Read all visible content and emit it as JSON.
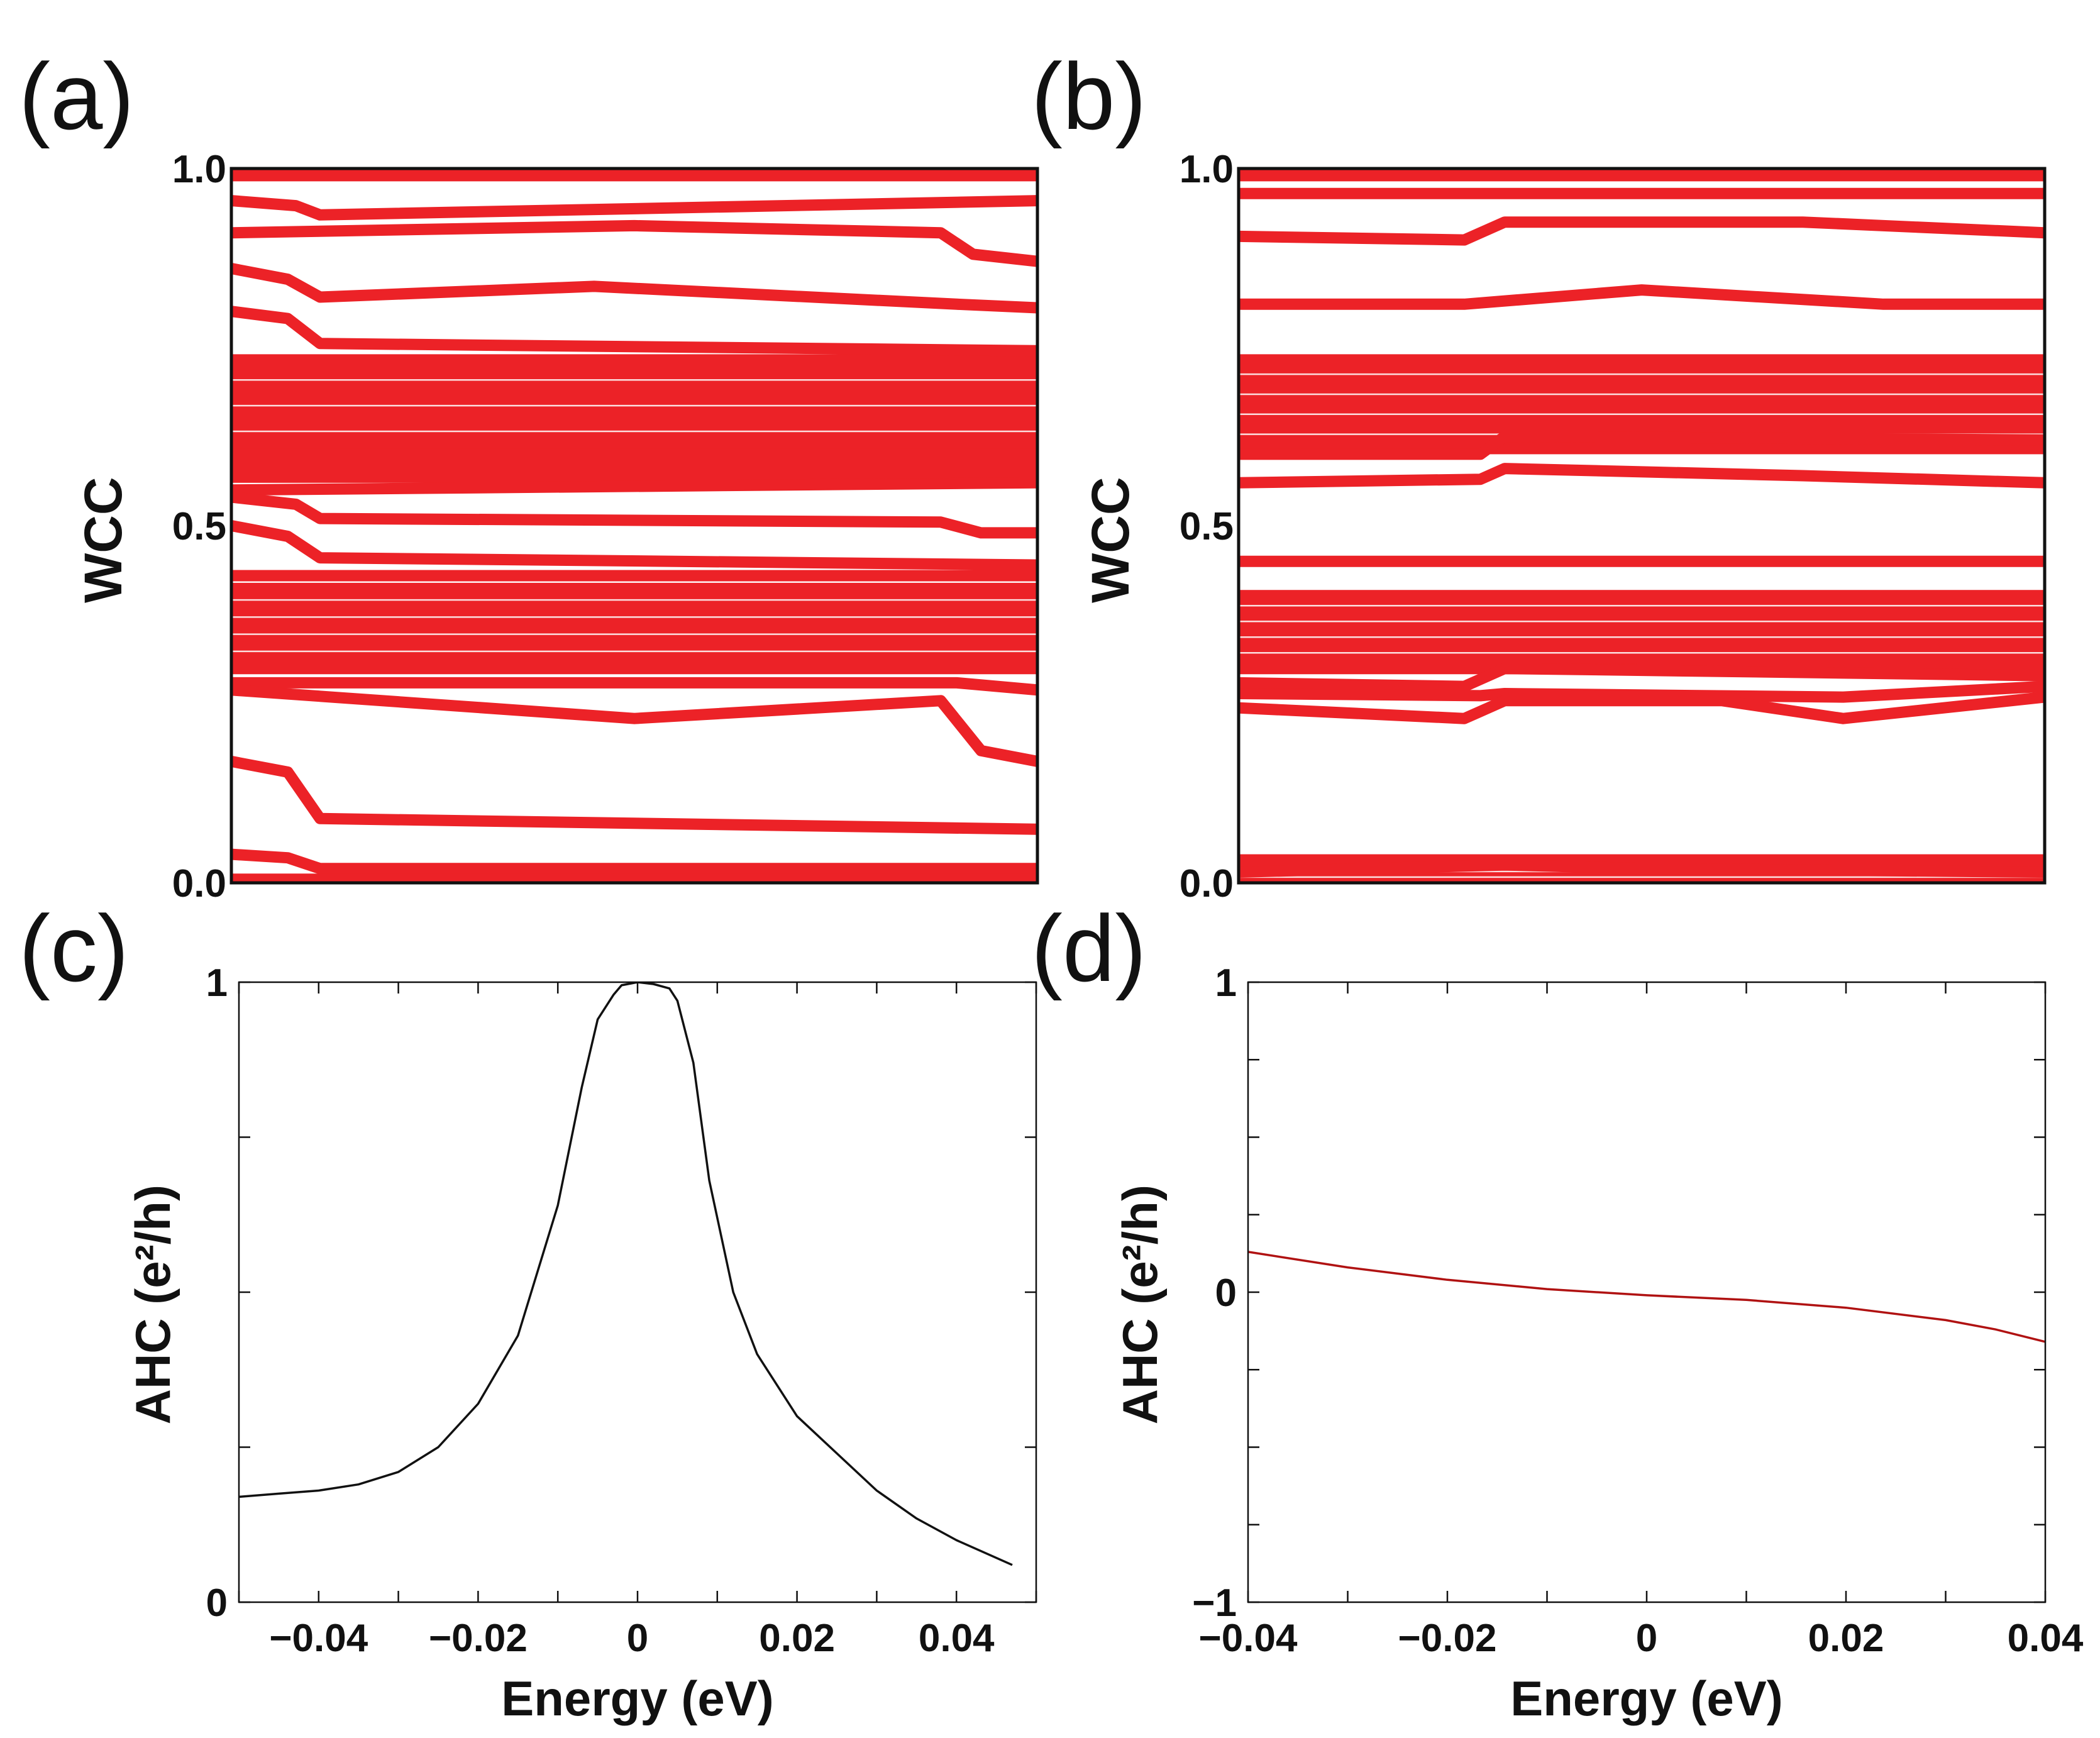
{
  "panels": {
    "a": {
      "letter": "(a)"
    },
    "b": {
      "letter": "(b)"
    },
    "c": {
      "letter": "(c)"
    },
    "d": {
      "letter": "(d)"
    }
  },
  "colors": {
    "wcc": "#ec2227",
    "ahc_c": "#111111",
    "ahc_d": "#b01212",
    "axis": "#111111"
  },
  "chart_data": [
    {
      "id": "a",
      "type": "line",
      "title": "",
      "xlabel": "",
      "ylabel": "WCC",
      "xlim": [
        0,
        1
      ],
      "ylim": [
        0,
        1
      ],
      "yticks": [
        0,
        0.5,
        1
      ],
      "ytick_labels": [
        "0.0",
        "0.5",
        "1.0"
      ],
      "dense_bands": [
        [
          0.56,
          0.74
        ],
        [
          0.3,
          0.42
        ]
      ],
      "series": [
        {
          "name": "w1",
          "x": [
            0,
            1
          ],
          "y": [
            0.99,
            0.99
          ]
        },
        {
          "name": "w2",
          "x": [
            0,
            0.08,
            0.11,
            1
          ],
          "y": [
            0.955,
            0.948,
            0.935,
            0.955
          ]
        },
        {
          "name": "w3",
          "x": [
            0,
            0.5,
            0.88,
            0.92,
            1
          ],
          "y": [
            0.91,
            0.92,
            0.91,
            0.88,
            0.87
          ]
        },
        {
          "name": "w4",
          "x": [
            0,
            0.07,
            0.11,
            0.45,
            0.9,
            1
          ],
          "y": [
            0.86,
            0.845,
            0.82,
            0.835,
            0.81,
            0.805
          ]
        },
        {
          "name": "w5",
          "x": [
            0,
            0.07,
            0.11,
            1
          ],
          "y": [
            0.8,
            0.79,
            0.755,
            0.745
          ]
        },
        {
          "name": "w6",
          "x": [
            0,
            1
          ],
          "y": [
            0.6,
            0.6
          ]
        },
        {
          "name": "w7",
          "x": [
            0,
            1
          ],
          "y": [
            0.55,
            0.56
          ]
        },
        {
          "name": "w8",
          "x": [
            0,
            0.08,
            0.11,
            0.88,
            0.93,
            1
          ],
          "y": [
            0.54,
            0.53,
            0.51,
            0.505,
            0.49,
            0.49
          ]
        },
        {
          "name": "w9",
          "x": [
            0,
            0.07,
            0.11,
            1
          ],
          "y": [
            0.5,
            0.485,
            0.455,
            0.445
          ]
        },
        {
          "name": "w10",
          "x": [
            0,
            1
          ],
          "y": [
            0.43,
            0.43
          ]
        },
        {
          "name": "w11",
          "x": [
            0,
            0.5,
            1
          ],
          "y": [
            0.3,
            0.3,
            0.3
          ]
        },
        {
          "name": "w12",
          "x": [
            0,
            0.9,
            1
          ],
          "y": [
            0.28,
            0.28,
            0.27
          ]
        },
        {
          "name": "w13",
          "x": [
            0,
            0.5,
            0.88,
            0.93,
            1
          ],
          "y": [
            0.27,
            0.23,
            0.255,
            0.185,
            0.17
          ]
        },
        {
          "name": "w14",
          "x": [
            0,
            0.07,
            0.11,
            1
          ],
          "y": [
            0.17,
            0.155,
            0.09,
            0.075
          ]
        },
        {
          "name": "w15",
          "x": [
            0,
            0.07,
            0.11,
            1
          ],
          "y": [
            0.04,
            0.035,
            0.02,
            0.02
          ]
        },
        {
          "name": "w16",
          "x": [
            0,
            1
          ],
          "y": [
            0.005,
            0.005
          ]
        }
      ]
    },
    {
      "id": "b",
      "type": "line",
      "title": "",
      "xlabel": "",
      "ylabel": "WCC",
      "xlim": [
        0,
        1
      ],
      "ylim": [
        0,
        1
      ],
      "yticks": [
        0,
        0.5,
        1
      ],
      "ytick_labels": [
        "0.0",
        "0.5",
        "1.0"
      ],
      "dense_bands": [
        [
          0.6,
          0.74
        ],
        [
          0.3,
          0.41
        ],
        [
          0.0,
          0.04
        ]
      ],
      "series": [
        {
          "name": "w1",
          "x": [
            0,
            1
          ],
          "y": [
            0.99,
            0.99
          ]
        },
        {
          "name": "w2",
          "x": [
            0,
            1
          ],
          "y": [
            0.965,
            0.965
          ]
        },
        {
          "name": "w3",
          "x": [
            0,
            0.28,
            0.33,
            0.7,
            1
          ],
          "y": [
            0.905,
            0.9,
            0.925,
            0.925,
            0.91
          ]
        },
        {
          "name": "w4",
          "x": [
            0,
            0.28,
            0.5,
            0.8,
            1
          ],
          "y": [
            0.81,
            0.81,
            0.83,
            0.81,
            0.81
          ]
        },
        {
          "name": "w5",
          "x": [
            0,
            0.3,
            0.33,
            1
          ],
          "y": [
            0.6,
            0.6,
            0.625,
            0.62
          ]
        },
        {
          "name": "w6",
          "x": [
            0,
            0.3,
            0.33,
            0.7,
            1
          ],
          "y": [
            0.56,
            0.565,
            0.58,
            0.57,
            0.56
          ]
        },
        {
          "name": "w7",
          "x": [
            0,
            1
          ],
          "y": [
            0.45,
            0.45
          ]
        },
        {
          "name": "w8",
          "x": [
            0,
            1
          ],
          "y": [
            0.3,
            0.3
          ]
        },
        {
          "name": "w9",
          "x": [
            0,
            0.28,
            0.33,
            1
          ],
          "y": [
            0.28,
            0.275,
            0.3,
            0.29
          ]
        },
        {
          "name": "w10",
          "x": [
            0,
            0.3,
            0.33,
            0.75,
            1
          ],
          "y": [
            0.265,
            0.262,
            0.265,
            0.26,
            0.275
          ]
        },
        {
          "name": "w11",
          "x": [
            0,
            0.28,
            0.33,
            0.6,
            0.75,
            1
          ],
          "y": [
            0.245,
            0.23,
            0.255,
            0.255,
            0.23,
            0.26
          ]
        },
        {
          "name": "w12",
          "x": [
            0,
            1
          ],
          "y": [
            0.03,
            0.03
          ]
        },
        {
          "name": "w13",
          "x": [
            0,
            0.33,
            0.5,
            1
          ],
          "y": [
            0.015,
            0.025,
            0.02,
            0.015
          ]
        }
      ]
    },
    {
      "id": "c",
      "type": "line",
      "title": "",
      "xlabel": "Energy (eV)",
      "ylabel": "AHC (e²/h)",
      "xlim": [
        -0.05,
        0.05
      ],
      "ylim": [
        0,
        1
      ],
      "xticks": [
        -0.04,
        -0.02,
        0,
        0.02,
        0.04
      ],
      "xtick_labels": [
        "−0.04",
        "−0.02",
        "0",
        "0.02",
        "0.04"
      ],
      "yticks": [
        0,
        1
      ],
      "ytick_labels": [
        "0",
        "1"
      ],
      "series": [
        {
          "name": "AHC",
          "x": [
            -0.05,
            -0.045,
            -0.04,
            -0.035,
            -0.03,
            -0.025,
            -0.02,
            -0.015,
            -0.01,
            -0.007,
            -0.005,
            -0.003,
            -0.002,
            0,
            0.002,
            0.004,
            0.005,
            0.007,
            0.009,
            0.012,
            0.015,
            0.02,
            0.025,
            0.03,
            0.035,
            0.04,
            0.047
          ],
          "y": [
            0.17,
            0.175,
            0.18,
            0.19,
            0.21,
            0.25,
            0.32,
            0.43,
            0.64,
            0.83,
            0.94,
            0.98,
            0.995,
            1.0,
            0.997,
            0.99,
            0.97,
            0.87,
            0.68,
            0.5,
            0.4,
            0.3,
            0.24,
            0.18,
            0.135,
            0.1,
            0.06
          ]
        }
      ]
    },
    {
      "id": "d",
      "type": "line",
      "title": "",
      "xlabel": "Energy (eV)",
      "ylabel": "AHC (e²/h)",
      "xlim": [
        -0.04,
        0.04
      ],
      "ylim": [
        -1,
        1
      ],
      "xticks": [
        -0.04,
        -0.02,
        0,
        0.02,
        0.04
      ],
      "xtick_labels": [
        "−0.04",
        "−0.02",
        "0",
        "0.02",
        "0.04"
      ],
      "yticks": [
        -1,
        0,
        1
      ],
      "ytick_labels": [
        "−1",
        "0",
        "1"
      ],
      "series": [
        {
          "name": "AHC",
          "x": [
            -0.04,
            -0.03,
            -0.02,
            -0.01,
            0,
            0.01,
            0.02,
            0.03,
            0.035,
            0.04
          ],
          "y": [
            0.13,
            0.08,
            0.04,
            0.01,
            -0.01,
            -0.025,
            -0.05,
            -0.09,
            -0.12,
            -0.16
          ]
        }
      ]
    }
  ]
}
